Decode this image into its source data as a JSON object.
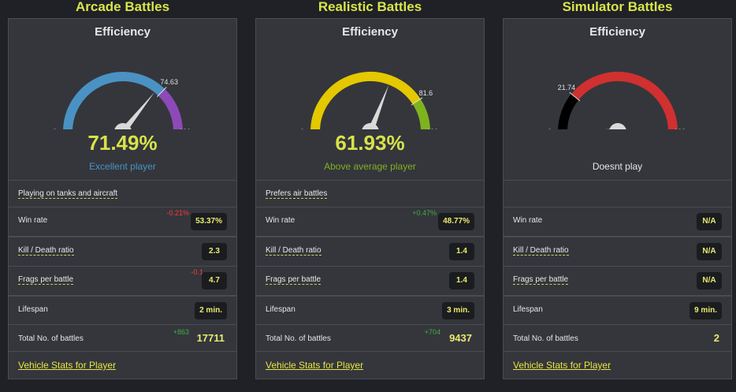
{
  "columns": [
    {
      "title": "Arcade Battles",
      "efficiency_label": "Efficiency",
      "gauge": {
        "min_label": "0",
        "max_label": "100",
        "value": 71.49,
        "marker_label": "74.63",
        "marker": 74.63,
        "colors": {
          "left": "#4a92c3",
          "right": "#8d49b8",
          "needle": "#d9d9d9"
        }
      },
      "percent": "71.49%",
      "verdict": "Excellent player",
      "verdict_color": "#4a92c3",
      "top_line": "Playing on tanks and aircraft",
      "rows": {
        "win_rate": {
          "label": "Win rate",
          "value": "53.37%",
          "delta": "-0.21%"
        },
        "kd": {
          "label": "Kill / Death ratio",
          "value": "2.3"
        },
        "frags": {
          "label": "Frags per battle",
          "value": "4.7",
          "delta": "-0.1"
        },
        "lifespan": {
          "label": "Lifespan",
          "value": "2 min."
        },
        "battles": {
          "label": "Total No. of battles",
          "value": "17711",
          "delta": "+863"
        }
      },
      "footer_link": "Vehicle Stats for Player"
    },
    {
      "title": "Realistic Battles",
      "efficiency_label": "Efficiency",
      "gauge": {
        "min_label": "0",
        "max_label": "100",
        "value": 61.93,
        "marker_label": "81.6",
        "marker": 81.6,
        "colors": {
          "left": "#e4c800",
          "right": "#7fb21f",
          "needle": "#d9d9d9"
        }
      },
      "percent": "61.93%",
      "verdict": "Above average player",
      "verdict_color": "#7fb21f",
      "top_line": "Prefers air battles",
      "rows": {
        "win_rate": {
          "label": "Win rate",
          "value": "48.77%",
          "delta": "+0.47%"
        },
        "kd": {
          "label": "Kill / Death ratio",
          "value": "1.4"
        },
        "frags": {
          "label": "Frags per battle",
          "value": "1.4"
        },
        "lifespan": {
          "label": "Lifespan",
          "value": "3 min."
        },
        "battles": {
          "label": "Total No. of battles",
          "value": "9437",
          "delta": "+704"
        }
      },
      "footer_link": "Vehicle Stats for Player"
    },
    {
      "title": "Simulator Battles",
      "efficiency_label": "Efficiency",
      "gauge": {
        "min_label": "0",
        "max_label": "100",
        "value": 0,
        "marker_label": "21.74",
        "marker": 21.74,
        "colors": {
          "left": "#000000",
          "right": "#d03030",
          "needle": "#d9d9d9"
        }
      },
      "percent": "",
      "verdict": "Doesnt play",
      "verdict_color": "#e6e6e6",
      "top_line": "",
      "rows": {
        "win_rate": {
          "label": "Win rate",
          "value": "N/A"
        },
        "kd": {
          "label": "Kill / Death ratio",
          "value": "N/A"
        },
        "frags": {
          "label": "Frags per battle",
          "value": "N/A"
        },
        "lifespan": {
          "label": "Lifespan",
          "value": "9 min."
        },
        "battles": {
          "label": "Total No. of battles",
          "value": "2"
        }
      },
      "footer_link": "Vehicle Stats for Player"
    }
  ]
}
